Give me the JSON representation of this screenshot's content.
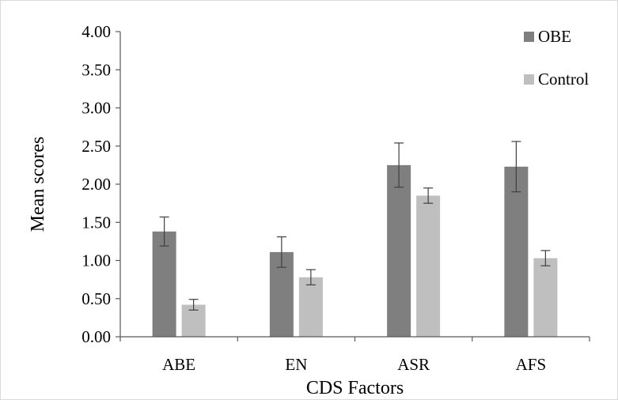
{
  "chart_data": {
    "type": "bar",
    "title": "",
    "xlabel": "CDS Factors",
    "ylabel": "Mean scores",
    "ylim": [
      0,
      4
    ],
    "yticks": [
      "0.00",
      "0.50",
      "1.00",
      "1.50",
      "2.00",
      "2.50",
      "3.00",
      "3.50",
      "4.00"
    ],
    "categories": [
      "ABE",
      "EN",
      "ASR",
      "AFS"
    ],
    "series": [
      {
        "name": "OBE",
        "color": "#7f7f7f",
        "values": [
          1.38,
          1.11,
          2.25,
          2.23
        ],
        "error": [
          0.19,
          0.2,
          0.29,
          0.33
        ]
      },
      {
        "name": "Control",
        "color": "#bfbfbf",
        "values": [
          0.42,
          0.78,
          1.85,
          1.03
        ],
        "error": [
          0.07,
          0.1,
          0.1,
          0.1
        ]
      }
    ],
    "grid": false,
    "legend_position": "top-right"
  }
}
